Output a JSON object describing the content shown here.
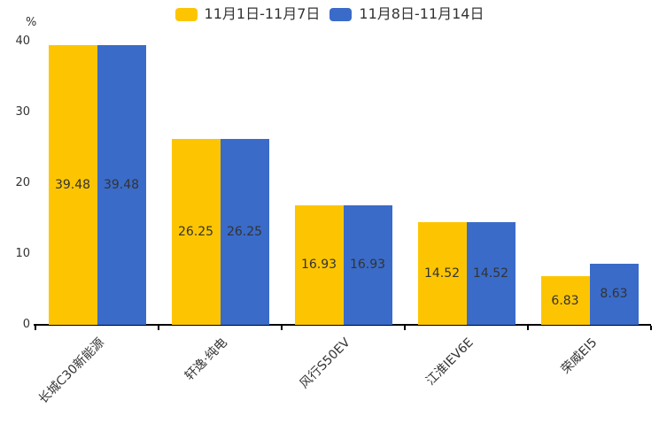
{
  "colors": {
    "background": "#ffffff",
    "axis": "#000000",
    "text": "#333333",
    "series1": "#FDC501",
    "series2": "#3A6BC8"
  },
  "chart_data": {
    "type": "bar",
    "title": "",
    "unit_label": "%",
    "categories": [
      "长城C30新能源",
      "轩逸·纯电",
      "风行S50EV",
      "江淮IEV6E",
      "荣威EI5"
    ],
    "series": [
      {
        "name": "11月1日-11月7日",
        "color": "#FDC501",
        "values": [
          39.48,
          26.25,
          16.93,
          14.52,
          6.83
        ]
      },
      {
        "name": "11月8日-11月14日",
        "color": "#3A6BC8",
        "values": [
          39.48,
          26.25,
          16.93,
          14.52,
          8.63
        ]
      }
    ],
    "ylim": [
      0,
      40
    ],
    "yticks": [
      0,
      10,
      20,
      30,
      40
    ],
    "grid": false,
    "legend_position": "top",
    "value_labels": true,
    "value_label_position": "center"
  }
}
